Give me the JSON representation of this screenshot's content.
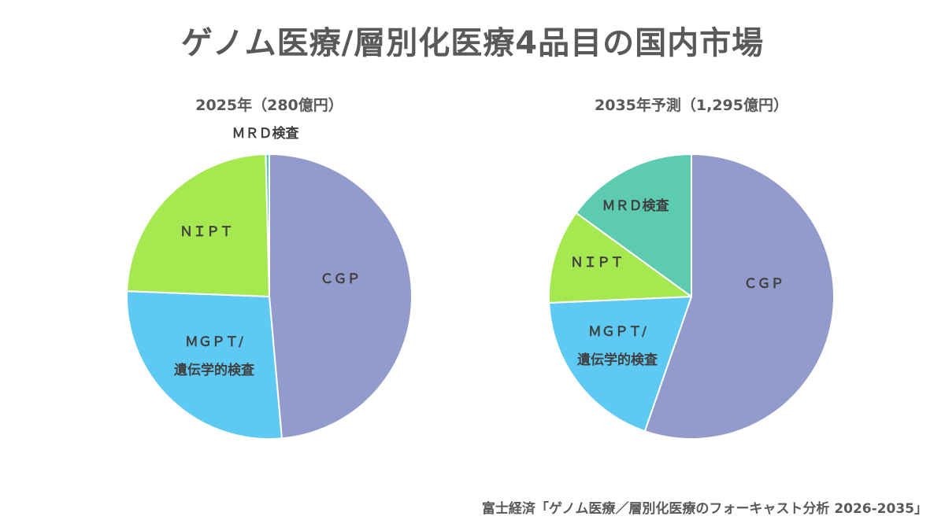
{
  "title": "ゲノム医療/層別化医療4品目の国内市場",
  "source": "富士経済「ゲノム医療／層別化医療のフォーキャスト分析 2026-2035」",
  "chart_data": [
    {
      "type": "pie",
      "title": "2025年（280億円）",
      "start_angle_deg": 0,
      "direction": "clockwise",
      "slices": [
        {
          "label": [
            "ＣＧＰ"
          ],
          "value": 48.6,
          "color": "#929BCB"
        },
        {
          "label": [
            "ＭＧＰＴ/",
            "遺伝学的検査"
          ],
          "value": 27.0,
          "color": "#5ECAF3"
        },
        {
          "label": [
            "ＮＩＰＴ"
          ],
          "value": 24.0,
          "color": "#A6E84F"
        },
        {
          "label": [
            "ＭＲＤ検査"
          ],
          "value": 0.4,
          "color": "#5DCBB0"
        }
      ]
    },
    {
      "type": "pie",
      "title": "2035年予測（1,295億円）",
      "start_angle_deg": 0,
      "direction": "clockwise",
      "slices": [
        {
          "label": [
            "ＣＧＰ"
          ],
          "value": 55.3,
          "color": "#929BCB"
        },
        {
          "label": [
            "ＭＧＰＴ/",
            "遺伝学的検査"
          ],
          "value": 19.0,
          "color": "#5ECAF3"
        },
        {
          "label": [
            "ＮＩＰＴ"
          ],
          "value": 10.7,
          "color": "#A6E84F"
        },
        {
          "label": [
            "ＭＲＤ検査"
          ],
          "value": 15.0,
          "color": "#5DCBB0"
        }
      ]
    }
  ]
}
